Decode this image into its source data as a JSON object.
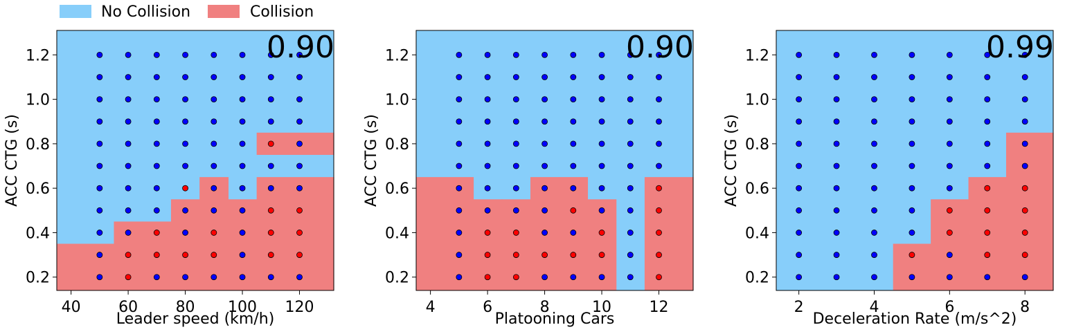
{
  "legend": {
    "items": [
      {
        "label": "No Collision",
        "color": "#87CEFA"
      },
      {
        "label": "Collision",
        "color": "#F08080"
      }
    ]
  },
  "colors": {
    "no_collision": "#87CEFA",
    "collision": "#F08080",
    "point_no_collision": "#0000FF",
    "point_collision": "#FF0000",
    "point_edge": "#000000"
  },
  "chart_data": [
    {
      "type": "heatmap",
      "xlabel": "Leader speed (km/h)",
      "ylabel": "ACC CTG (s)",
      "score": "0.90",
      "xlim": [
        35,
        132
      ],
      "ylim": [
        0.14,
        1.31
      ],
      "xticks": [
        40,
        60,
        80,
        100,
        120
      ],
      "yticks": [
        0.2,
        0.4,
        0.6,
        0.8,
        1.0,
        1.2
      ],
      "xtick_labels": [
        "40",
        "60",
        "80",
        "100",
        "120"
      ],
      "ytick_labels": [
        "0.2",
        "0.4",
        "0.6",
        "0.8",
        "1.0",
        "1.2"
      ],
      "x": [
        50,
        60,
        70,
        80,
        90,
        100,
        110,
        120
      ],
      "y": [
        0.2,
        0.3,
        0.4,
        0.5,
        0.6,
        0.7,
        0.8,
        0.9,
        1.0,
        1.1,
        1.2
      ],
      "region_collision_max_ctg": [
        0.35,
        0.45,
        0.45,
        0.55,
        0.65,
        0.55,
        0.85,
        0.85
      ],
      "region_gaps": [
        {
          "x": 110,
          "ctg_range": [
            0.65,
            0.75
          ]
        },
        {
          "x": 120,
          "ctg_range": [
            0.65,
            0.75
          ]
        }
      ],
      "collision_points": [
        [
          60,
          0.2
        ],
        [
          60,
          0.3
        ],
        [
          70,
          0.3
        ],
        [
          70,
          0.4
        ],
        [
          80,
          0.3
        ],
        [
          80,
          0.6
        ],
        [
          90,
          0.3
        ],
        [
          90,
          0.4
        ],
        [
          110,
          0.3
        ],
        [
          110,
          0.4
        ],
        [
          110,
          0.5
        ],
        [
          110,
          0.8
        ],
        [
          120,
          0.3
        ],
        [
          120,
          0.4
        ],
        [
          120,
          0.5
        ]
      ]
    },
    {
      "type": "heatmap",
      "xlabel": "Platooning Cars",
      "ylabel": "ACC CTG (s)",
      "score": "0.90",
      "xlim": [
        3.5,
        13.2
      ],
      "ylim": [
        0.14,
        1.31
      ],
      "xticks": [
        4,
        6,
        8,
        10,
        12
      ],
      "yticks": [
        0.2,
        0.4,
        0.6,
        0.8,
        1.0,
        1.2
      ],
      "xtick_labels": [
        "4",
        "6",
        "8",
        "10",
        "12"
      ],
      "ytick_labels": [
        "0.2",
        "0.4",
        "0.6",
        "0.8",
        "1.0",
        "1.2"
      ],
      "x": [
        5,
        6,
        7,
        8,
        9,
        10,
        11,
        12
      ],
      "y": [
        0.2,
        0.3,
        0.4,
        0.5,
        0.6,
        0.7,
        0.8,
        0.9,
        1.0,
        1.1,
        1.2
      ],
      "region_collision_max_ctg": [
        0.65,
        0.55,
        0.55,
        0.65,
        0.65,
        0.55,
        0.0,
        0.65
      ],
      "region_gaps": [],
      "collision_points": [
        [
          6,
          0.2
        ],
        [
          6,
          0.3
        ],
        [
          6,
          0.4
        ],
        [
          7,
          0.2
        ],
        [
          7,
          0.3
        ],
        [
          7,
          0.4
        ],
        [
          8,
          0.3
        ],
        [
          9,
          0.3
        ],
        [
          9,
          0.5
        ],
        [
          10,
          0.3
        ],
        [
          10,
          0.4
        ],
        [
          12,
          0.2
        ],
        [
          12,
          0.3
        ],
        [
          12,
          0.4
        ],
        [
          12,
          0.5
        ],
        [
          12,
          0.6
        ]
      ]
    },
    {
      "type": "heatmap",
      "xlabel": "Deceleration Rate (m/s^2)",
      "ylabel": "ACC CTG (s)",
      "score": "0.99",
      "xlim": [
        1.4,
        8.75
      ],
      "ylim": [
        0.14,
        1.31
      ],
      "xticks": [
        2,
        4,
        6,
        8
      ],
      "yticks": [
        0.2,
        0.4,
        0.6,
        0.8,
        1.0,
        1.2
      ],
      "xtick_labels": [
        "2",
        "4",
        "6",
        "8"
      ],
      "ytick_labels": [
        "0.2",
        "0.4",
        "0.6",
        "0.8",
        "1.0",
        "1.2"
      ],
      "x": [
        2,
        3,
        4,
        5,
        6,
        7,
        8
      ],
      "y": [
        0.2,
        0.3,
        0.4,
        0.5,
        0.6,
        0.7,
        0.8,
        0.9,
        1.0,
        1.1,
        1.2
      ],
      "region_collision_max_ctg": [
        0.0,
        0.0,
        0.0,
        0.35,
        0.55,
        0.65,
        0.85
      ],
      "region_gaps": [],
      "collision_points": [
        [
          5,
          0.3
        ],
        [
          6,
          0.4
        ],
        [
          6,
          0.5
        ],
        [
          7,
          0.3
        ],
        [
          7,
          0.4
        ],
        [
          7,
          0.5
        ],
        [
          7,
          0.6
        ],
        [
          8,
          0.3
        ],
        [
          8,
          0.4
        ],
        [
          8,
          0.5
        ],
        [
          8,
          0.6
        ]
      ]
    }
  ]
}
